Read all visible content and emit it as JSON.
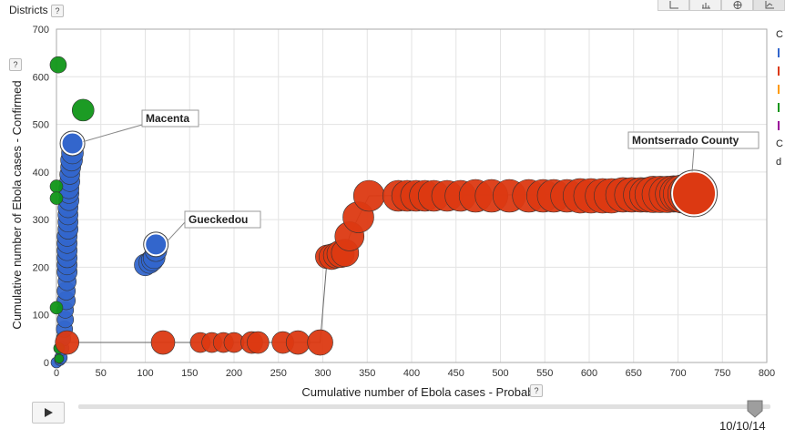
{
  "header": {
    "districts_label": "Districts",
    "help_symbol": "?"
  },
  "toolbar": {
    "buttons": [
      "bubble-chart-icon",
      "bar-chart-icon",
      "globe-map-icon",
      "line-chart-icon"
    ],
    "active": "line-chart-icon"
  },
  "legend": {
    "items": [
      {
        "text": "C",
        "color": ""
      },
      {
        "text": "",
        "color": "#3366cc"
      },
      {
        "text": "",
        "color": "#dc3912"
      },
      {
        "text": "",
        "color": "#ff9900"
      },
      {
        "text": "",
        "color": "#109618"
      },
      {
        "text": "",
        "color": "#990099"
      },
      {
        "text": "C",
        "color": ""
      },
      {
        "text": "d",
        "color": ""
      }
    ]
  },
  "playback": {
    "date": "10/10/14",
    "position": 0.97,
    "play_icon": "play-icon"
  },
  "colors": {
    "guinea": "#3366cc",
    "liberia": "#dc3912",
    "sierra_leone": "#109618"
  },
  "chart_data": {
    "type": "scatter",
    "xlabel": "Cumulative number of Ebola cases - Probable",
    "ylabel": "Cumulative number of Ebola cases - Confirmed",
    "xlim": [
      0,
      800
    ],
    "ylim": [
      0,
      700
    ],
    "xticks": [
      0,
      50,
      100,
      150,
      200,
      250,
      300,
      350,
      400,
      450,
      500,
      550,
      600,
      650,
      700,
      750,
      800
    ],
    "yticks": [
      0,
      100,
      200,
      300,
      400,
      500,
      600,
      700
    ],
    "grid": true,
    "labels": [
      {
        "text": "Macenta",
        "x": 18,
        "y": 460
      },
      {
        "text": "Gueckedou",
        "x": 112,
        "y": 248
      },
      {
        "text": "Montserrado County",
        "x": 718,
        "y": 355
      }
    ],
    "trail": [
      [
        12,
        42
      ],
      [
        297,
        42
      ],
      [
        305,
        222
      ],
      [
        310,
        222
      ],
      [
        315,
        225
      ],
      [
        320,
        228
      ],
      [
        325,
        230
      ],
      [
        330,
        265
      ],
      [
        340,
        305
      ],
      [
        352,
        350
      ],
      [
        720,
        355
      ]
    ],
    "series": [
      {
        "color": "#3366cc",
        "points": [
          [
            0,
            0
          ],
          [
            4,
            5
          ],
          [
            5,
            10
          ],
          [
            6,
            30
          ],
          [
            8,
            50
          ],
          [
            9,
            70
          ],
          [
            10,
            90
          ],
          [
            10,
            110
          ],
          [
            11,
            130
          ],
          [
            11,
            150
          ],
          [
            12,
            170
          ],
          [
            12,
            190
          ],
          [
            12,
            205
          ],
          [
            12,
            220
          ],
          [
            12,
            235
          ],
          [
            12,
            250
          ],
          [
            12,
            265
          ],
          [
            13,
            280
          ],
          [
            13,
            295
          ],
          [
            13,
            310
          ],
          [
            13,
            325
          ],
          [
            14,
            340
          ],
          [
            14,
            355
          ],
          [
            14,
            365
          ],
          [
            15,
            380
          ],
          [
            15,
            395
          ],
          [
            16,
            410
          ],
          [
            17,
            425
          ],
          [
            18,
            440
          ],
          [
            18,
            460
          ],
          [
            100,
            205
          ],
          [
            105,
            210
          ],
          [
            108,
            215
          ],
          [
            110,
            220
          ],
          [
            112,
            235
          ],
          [
            112,
            248
          ]
        ],
        "sizes": [
          6,
          6,
          7,
          8,
          8,
          9,
          9,
          9,
          10,
          10,
          10,
          11,
          11,
          11,
          11,
          11,
          11,
          11,
          11,
          11,
          11,
          11,
          11,
          11,
          11,
          11,
          11,
          12,
          12,
          12,
          12,
          12,
          12,
          12,
          12,
          12
        ]
      },
      {
        "color": "#109618",
        "points": [
          [
            2,
            625
          ],
          [
            30,
            530
          ],
          [
            0,
            370
          ],
          [
            0,
            345
          ],
          [
            0,
            115
          ],
          [
            3,
            30
          ],
          [
            3,
            8
          ]
        ],
        "sizes": [
          9,
          12,
          7,
          7,
          7,
          6,
          5
        ]
      },
      {
        "color": "#dc3912",
        "points": [
          [
            12,
            42
          ],
          [
            120,
            42
          ],
          [
            162,
            42
          ],
          [
            175,
            42
          ],
          [
            188,
            42
          ],
          [
            200,
            42
          ],
          [
            220,
            42
          ],
          [
            227,
            42
          ],
          [
            255,
            42
          ],
          [
            272,
            42
          ],
          [
            297,
            42
          ],
          [
            305,
            222
          ],
          [
            310,
            222
          ],
          [
            315,
            225
          ],
          [
            320,
            228
          ],
          [
            325,
            230
          ],
          [
            330,
            265
          ],
          [
            340,
            305
          ],
          [
            352,
            350
          ],
          [
            385,
            350
          ],
          [
            395,
            350
          ],
          [
            405,
            350
          ],
          [
            415,
            350
          ],
          [
            425,
            350
          ],
          [
            440,
            350
          ],
          [
            455,
            350
          ],
          [
            472,
            350
          ],
          [
            490,
            350
          ],
          [
            510,
            350
          ],
          [
            532,
            350
          ],
          [
            548,
            350
          ],
          [
            560,
            350
          ],
          [
            575,
            350
          ],
          [
            590,
            350
          ],
          [
            602,
            350
          ],
          [
            615,
            350
          ],
          [
            625,
            350
          ],
          [
            638,
            352
          ],
          [
            648,
            352
          ],
          [
            658,
            352
          ],
          [
            665,
            352
          ],
          [
            672,
            353
          ],
          [
            680,
            353
          ],
          [
            688,
            353
          ],
          [
            695,
            354
          ],
          [
            700,
            354
          ],
          [
            705,
            354
          ],
          [
            710,
            354
          ],
          [
            715,
            355
          ],
          [
            718,
            355
          ]
        ],
        "sizes": [
          13,
          13,
          11,
          11,
          11,
          11,
          12,
          12,
          12,
          13,
          14,
          13,
          14,
          14,
          15,
          15,
          16,
          17,
          17,
          17,
          17,
          17,
          17,
          17,
          17,
          17,
          18,
          18,
          18,
          18,
          18,
          18,
          18,
          19,
          19,
          19,
          19,
          19,
          19,
          19,
          19,
          20,
          20,
          20,
          20,
          20,
          21,
          21,
          22,
          24
        ]
      }
    ]
  }
}
